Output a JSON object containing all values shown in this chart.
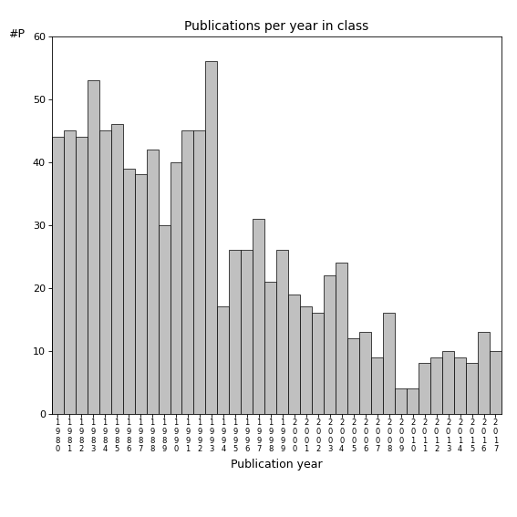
{
  "title": "Publications per year in class",
  "xlabel": "Publication year",
  "ylabel": "#P",
  "bar_color": "#c0c0c0",
  "bar_edgecolor": "#000000",
  "ylim": [
    0,
    60
  ],
  "yticks": [
    0,
    10,
    20,
    30,
    40,
    50,
    60
  ],
  "years": [
    "1980",
    "1981",
    "1982",
    "1983",
    "1984",
    "1985",
    "1986",
    "1987",
    "1988",
    "1989",
    "1990",
    "1991",
    "1992",
    "1993",
    "1994",
    "1995",
    "1996",
    "1997",
    "1998",
    "1999",
    "2000",
    "2001",
    "2002",
    "2003",
    "2004",
    "2005",
    "2006",
    "2007",
    "2008",
    "2009",
    "2010",
    "2011",
    "2012",
    "2013",
    "2014",
    "2015",
    "2016",
    "2017"
  ],
  "values": [
    44,
    45,
    44,
    53,
    45,
    46,
    39,
    38,
    42,
    30,
    40,
    45,
    45,
    56,
    17,
    26,
    26,
    31,
    21,
    26,
    19,
    17,
    16,
    22,
    24,
    12,
    13,
    9,
    16,
    4,
    4,
    8,
    9,
    10,
    9,
    8,
    13,
    10
  ],
  "last_partial_bar": 2,
  "figsize": [
    5.67,
    5.67
  ],
  "dpi": 100,
  "title_fontsize": 10,
  "label_fontsize": 9,
  "tick_fontsize": 8,
  "xlabel_fontsize": 9
}
